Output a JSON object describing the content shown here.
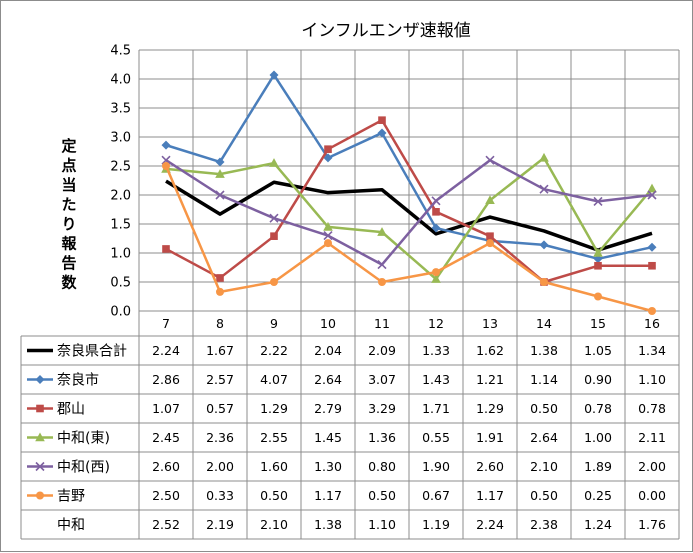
{
  "chart_data": {
    "type": "line",
    "title": "インフルエンザ速報値",
    "ylabel": "定点当たり報告数",
    "xlabel": "",
    "ylim": [
      0,
      4.5
    ],
    "yticks": [
      "0.0",
      "0.5",
      "1.0",
      "1.5",
      "2.0",
      "2.5",
      "3.0",
      "3.5",
      "4.0",
      "4.5"
    ],
    "categories": [
      "7",
      "8",
      "9",
      "10",
      "11",
      "12",
      "13",
      "14",
      "15",
      "16"
    ],
    "grid": true,
    "legend": "data-table",
    "series": [
      {
        "name": "奈良県合計",
        "color": "#000000",
        "marker": "none",
        "width": 3.5,
        "values": [
          2.24,
          1.67,
          2.22,
          2.04,
          2.09,
          1.33,
          1.62,
          1.38,
          1.05,
          1.34
        ],
        "labels": [
          "2.24",
          "1.67",
          "2.22",
          "2.04",
          "2.09",
          "1.33",
          "1.62",
          "1.38",
          "1.05",
          "1.34"
        ]
      },
      {
        "name": "奈良市",
        "color": "#4a7ebb",
        "marker": "diamond",
        "width": 2.5,
        "values": [
          2.86,
          2.57,
          4.07,
          2.64,
          3.07,
          1.43,
          1.21,
          1.14,
          0.9,
          1.1
        ],
        "labels": [
          "2.86",
          "2.57",
          "4.07",
          "2.64",
          "3.07",
          "1.43",
          "1.21",
          "1.14",
          "0.90",
          "1.10"
        ]
      },
      {
        "name": "郡山",
        "color": "#be4b48",
        "marker": "square",
        "width": 2.5,
        "values": [
          1.07,
          0.57,
          1.29,
          2.79,
          3.29,
          1.71,
          1.29,
          0.5,
          0.78,
          0.78
        ],
        "labels": [
          "1.07",
          "0.57",
          "1.29",
          "2.79",
          "3.29",
          "1.71",
          "1.29",
          "0.50",
          "0.78",
          "0.78"
        ]
      },
      {
        "name": "中和(東)",
        "color": "#98b954",
        "marker": "triangle",
        "width": 2.5,
        "values": [
          2.45,
          2.36,
          2.55,
          1.45,
          1.36,
          0.55,
          1.91,
          2.64,
          1.0,
          2.11
        ],
        "labels": [
          "2.45",
          "2.36",
          "2.55",
          "1.45",
          "1.36",
          "0.55",
          "1.91",
          "2.64",
          "1.00",
          "2.11"
        ]
      },
      {
        "name": "中和(西)",
        "color": "#7d60a0",
        "marker": "x",
        "width": 2.5,
        "values": [
          2.6,
          2.0,
          1.6,
          1.3,
          0.8,
          1.9,
          2.6,
          2.1,
          1.89,
          2.0
        ],
        "labels": [
          "2.60",
          "2.00",
          "1.60",
          "1.30",
          "0.80",
          "1.90",
          "2.60",
          "2.10",
          "1.89",
          "2.00"
        ]
      },
      {
        "name": "吉野",
        "color": "#f79646",
        "marker": "circle",
        "width": 2.5,
        "values": [
          2.5,
          0.33,
          0.5,
          1.17,
          0.5,
          0.67,
          1.17,
          0.5,
          0.25,
          0.0
        ],
        "labels": [
          "2.50",
          "0.33",
          "0.50",
          "1.17",
          "0.50",
          "0.67",
          "1.17",
          "0.50",
          "0.25",
          "0.00"
        ]
      },
      {
        "name": "中和",
        "color": "",
        "marker": "none",
        "width": 0,
        "hidden": true,
        "values": [
          2.52,
          2.19,
          2.1,
          1.38,
          1.1,
          1.19,
          2.24,
          2.38,
          1.24,
          1.76
        ],
        "labels": [
          "2.52",
          "2.19",
          "2.10",
          "1.38",
          "1.10",
          "1.19",
          "2.24",
          "2.38",
          "1.24",
          "1.76"
        ]
      }
    ]
  }
}
